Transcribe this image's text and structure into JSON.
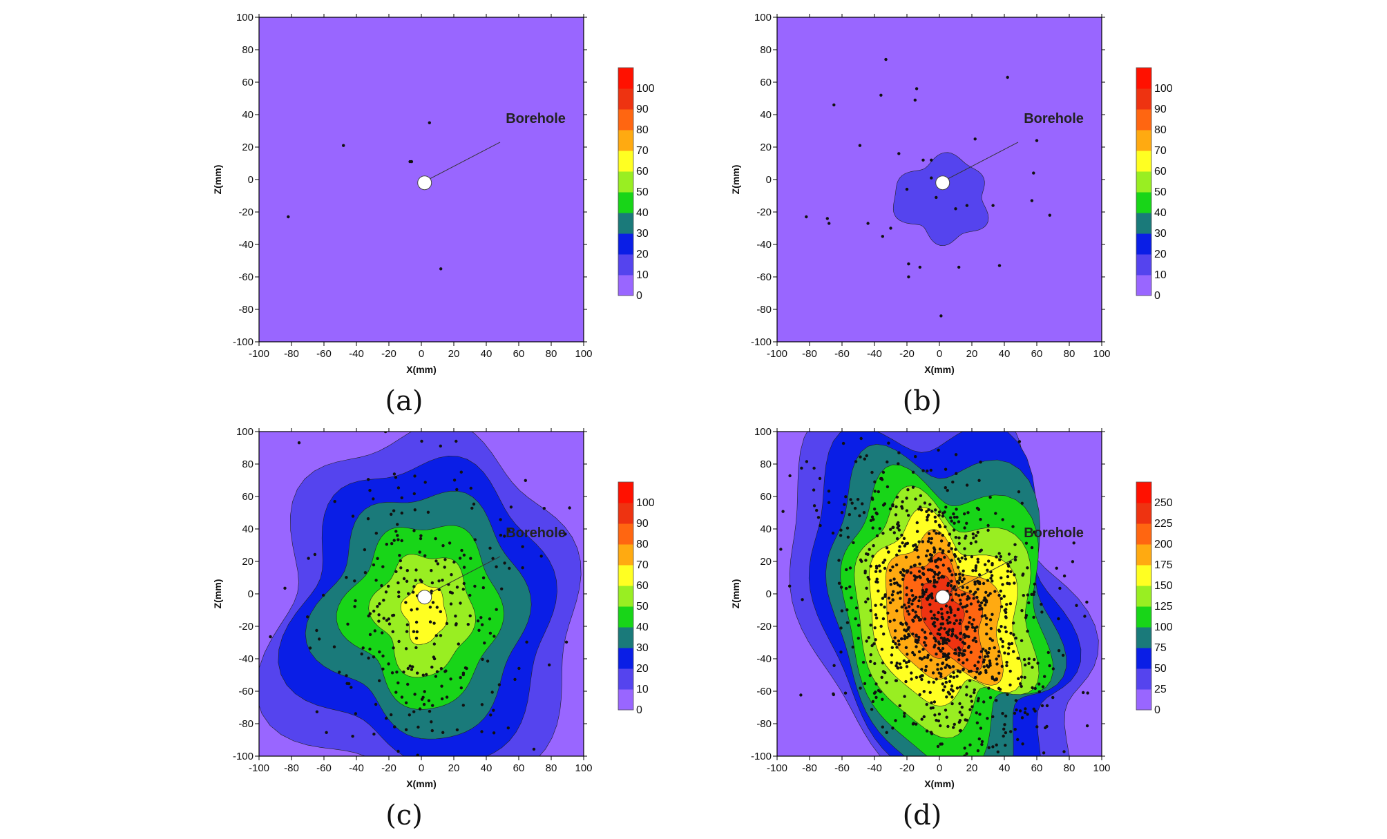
{
  "colors": {
    "background_level": "#9966ff",
    "levels_0_100": [
      "#9966ff",
      "#5544ee",
      "#0a1ee6",
      "#1a7a7a",
      "#18d518",
      "#99ee22",
      "#ffff22",
      "#ffaa11",
      "#ff6611",
      "#ee3311",
      "#ff1100"
    ],
    "levels_0_250": [
      "#9966ff",
      "#5544ee",
      "#0a1ee6",
      "#1a7a7a",
      "#18d518",
      "#99ee22",
      "#ffff22",
      "#ffaa11",
      "#ff6611",
      "#ee3311",
      "#ff1100"
    ],
    "borehole_fill": "#ffffff",
    "event_dot": "#111111"
  },
  "chart_data": [
    {
      "id": "a",
      "type": "heatmap",
      "caption": "(a)",
      "xlabel": "X(mm)",
      "ylabel": "Z(mm)",
      "xlim": [
        -100,
        100
      ],
      "ylim": [
        -100,
        100
      ],
      "xticks": [
        "-100",
        "-80",
        "-60",
        "-40",
        "-20",
        "0",
        "20",
        "40",
        "60",
        "80",
        "100"
      ],
      "yticks": [
        "-100",
        "-80",
        "-60",
        "-40",
        "-20",
        "0",
        "20",
        "40",
        "60",
        "80",
        "100"
      ],
      "colorbar_ticks": [
        "0",
        "10",
        "20",
        "30",
        "40",
        "50",
        "60",
        "70",
        "80",
        "90",
        "100"
      ],
      "colorbar_max": 110,
      "annotation": "Borehole",
      "borehole": [
        2,
        -2
      ],
      "max_level": 0,
      "events": [
        [
          5,
          35
        ],
        [
          -48,
          21
        ],
        [
          -7,
          11
        ],
        [
          -6,
          11
        ],
        [
          -82,
          -23
        ],
        [
          12,
          -55
        ]
      ]
    },
    {
      "id": "b",
      "type": "heatmap",
      "caption": "(b)",
      "xlabel": "X(mm)",
      "ylabel": "Z(mm)",
      "xlim": [
        -100,
        100
      ],
      "ylim": [
        -100,
        100
      ],
      "xticks": [
        "-100",
        "-80",
        "-60",
        "-40",
        "-20",
        "0",
        "20",
        "40",
        "60",
        "80",
        "100"
      ],
      "yticks": [
        "-100",
        "-80",
        "-60",
        "-40",
        "-20",
        "0",
        "20",
        "40",
        "60",
        "80",
        "100"
      ],
      "colorbar_ticks": [
        "0",
        "10",
        "20",
        "30",
        "40",
        "50",
        "60",
        "70",
        "80",
        "90",
        "100"
      ],
      "colorbar_max": 110,
      "annotation": "Borehole",
      "borehole": [
        2,
        -2
      ],
      "max_level": 1,
      "events": [
        [
          -33,
          74
        ],
        [
          -36,
          52
        ],
        [
          -65,
          46
        ],
        [
          -14,
          56
        ],
        [
          -15,
          49
        ],
        [
          42,
          63
        ],
        [
          -49,
          21
        ],
        [
          -25,
          16
        ],
        [
          -10,
          12
        ],
        [
          -5,
          12
        ],
        [
          17,
          -16
        ],
        [
          33,
          -16
        ],
        [
          60,
          24
        ],
        [
          58,
          4
        ],
        [
          57,
          -13
        ],
        [
          68,
          -22
        ],
        [
          -82,
          -23
        ],
        [
          -69,
          -24
        ],
        [
          -68,
          -27
        ],
        [
          -44,
          -27
        ],
        [
          -35,
          -35
        ],
        [
          -19,
          -52
        ],
        [
          -19,
          -60
        ],
        [
          -12,
          -54
        ],
        [
          12,
          -54
        ],
        [
          37,
          -53
        ],
        [
          1,
          -84
        ],
        [
          -5,
          1
        ],
        [
          -20,
          -6
        ],
        [
          10,
          -18
        ],
        [
          -2,
          -11
        ],
        [
          22,
          25
        ],
        [
          -30,
          -30
        ]
      ]
    },
    {
      "id": "c",
      "type": "heatmap",
      "caption": "(c)",
      "xlabel": "X(mm)",
      "ylabel": "Z(mm)",
      "xlim": [
        -100,
        100
      ],
      "ylim": [
        -100,
        100
      ],
      "xticks": [
        "-100",
        "-80",
        "-60",
        "-40",
        "-20",
        "0",
        "20",
        "40",
        "60",
        "80",
        "100"
      ],
      "yticks": [
        "-100",
        "-80",
        "-60",
        "-40",
        "-20",
        "0",
        "20",
        "40",
        "60",
        "80",
        "100"
      ],
      "colorbar_ticks": [
        "0",
        "10",
        "20",
        "30",
        "40",
        "50",
        "60",
        "70",
        "80",
        "90",
        "100"
      ],
      "colorbar_max": 110,
      "annotation": "Borehole",
      "borehole": [
        2,
        -2
      ],
      "max_level": 6,
      "event_count": 300,
      "event_spread": [
        32,
        48
      ]
    },
    {
      "id": "d",
      "type": "heatmap",
      "caption": "(d)",
      "xlabel": "X(mm)",
      "ylabel": "Z(mm)",
      "xlim": [
        -100,
        100
      ],
      "ylim": [
        -100,
        100
      ],
      "xticks": [
        "-100",
        "-80",
        "-60",
        "-40",
        "-20",
        "0",
        "20",
        "40",
        "60",
        "80",
        "100"
      ],
      "yticks": [
        "-100",
        "-80",
        "-60",
        "-40",
        "-20",
        "0",
        "20",
        "40",
        "60",
        "80",
        "100"
      ],
      "colorbar_ticks": [
        "0",
        "25",
        "50",
        "75",
        "100",
        "125",
        "150",
        "175",
        "200",
        "225",
        "250"
      ],
      "colorbar_max": 275,
      "annotation": "Borehole",
      "borehole": [
        2,
        -2
      ],
      "max_level": 9,
      "event_count": 1100,
      "event_spread": [
        30,
        45
      ]
    }
  ]
}
